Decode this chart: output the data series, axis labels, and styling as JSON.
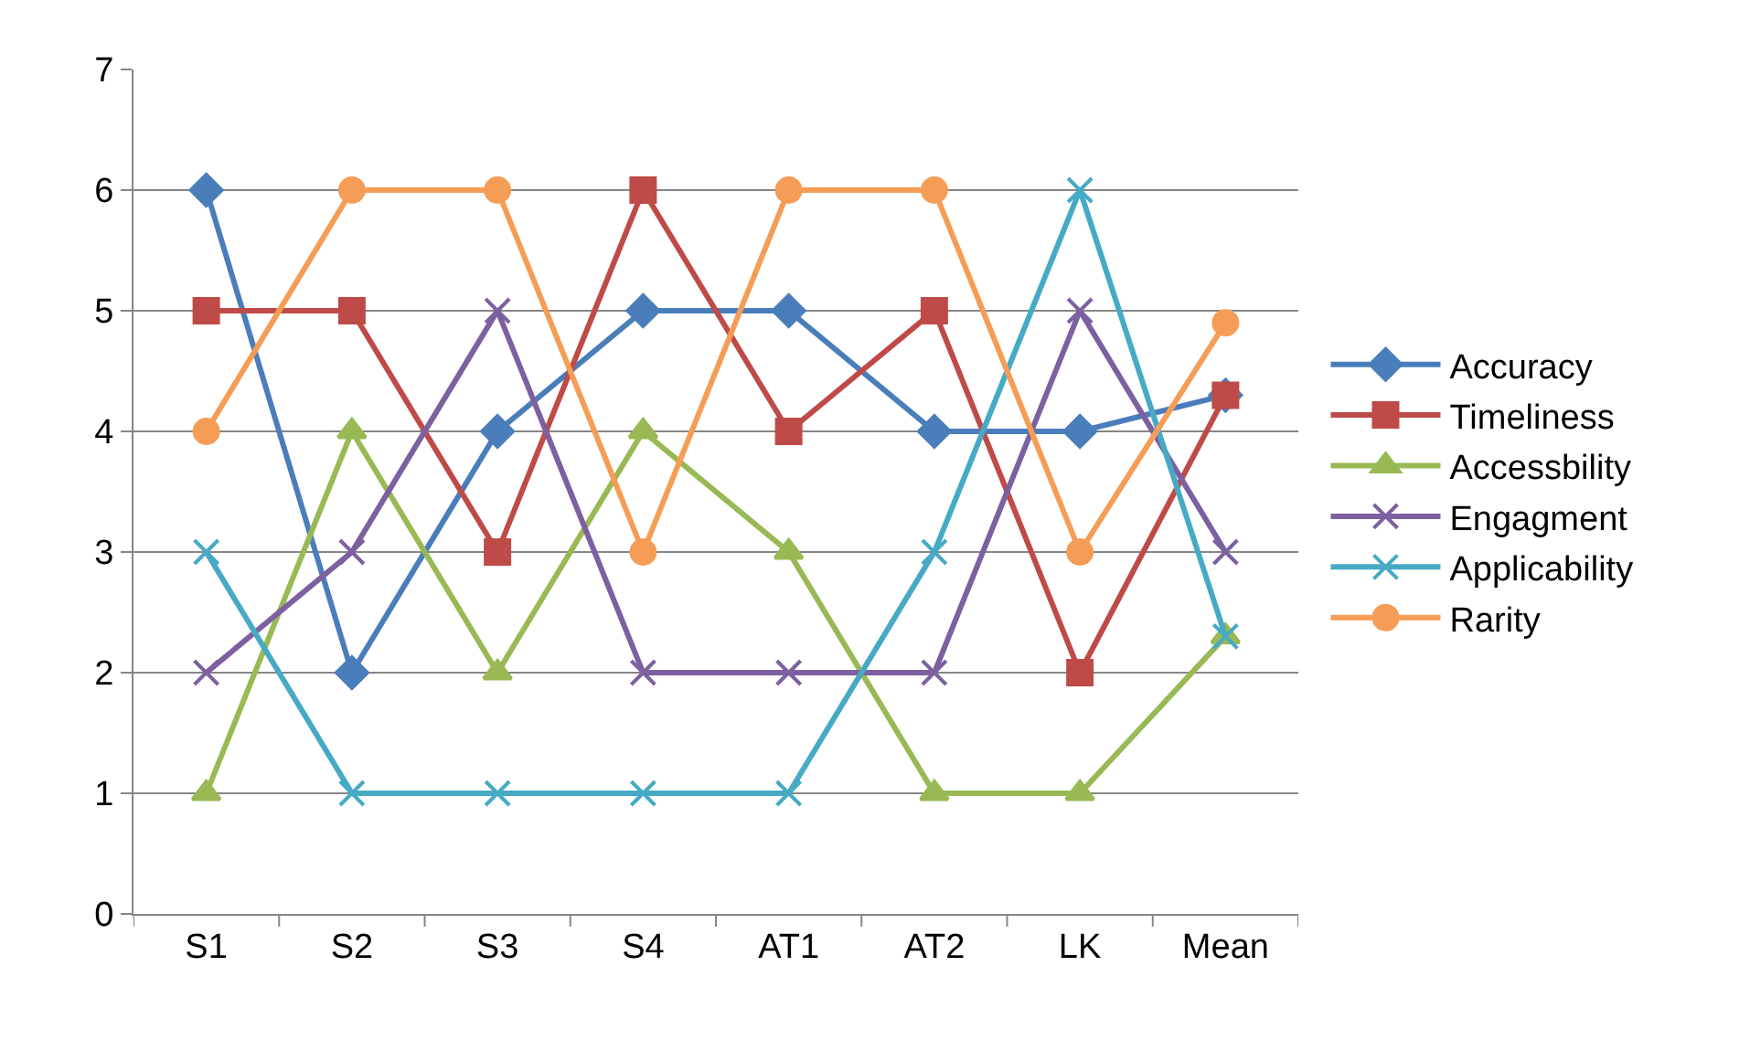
{
  "chart_data": {
    "type": "line",
    "categories": [
      "S1",
      "S2",
      "S3",
      "S4",
      "AT1",
      "AT2",
      "LK",
      "Mean"
    ],
    "series": [
      {
        "name": "Accuracy",
        "color": "#4a7ebb",
        "marker": "diamond",
        "values": [
          6,
          2,
          4,
          5,
          5,
          4,
          4,
          4.3
        ]
      },
      {
        "name": "Timeliness",
        "color": "#be4b48",
        "marker": "square",
        "values": [
          5,
          5,
          3,
          6,
          4,
          5,
          2,
          4.3
        ]
      },
      {
        "name": "Accessbility",
        "color": "#98b954",
        "marker": "triangle",
        "values": [
          1,
          4,
          2,
          4,
          3,
          1,
          1,
          2.3
        ]
      },
      {
        "name": "Engagment",
        "color": "#7d60a0",
        "marker": "cross",
        "values": [
          2,
          3,
          5,
          2,
          2,
          2,
          5,
          3
        ]
      },
      {
        "name": "Applicability",
        "color": "#46aac5",
        "marker": "cross",
        "values": [
          3,
          1,
          1,
          1,
          1,
          3,
          6,
          2.3
        ]
      },
      {
        "name": "Rarity",
        "color": "#f59d56",
        "marker": "circle",
        "values": [
          4,
          6,
          6,
          3,
          6,
          6,
          3,
          4.9
        ]
      }
    ],
    "ylim": [
      0,
      7
    ],
    "yticks": [
      0,
      1,
      2,
      3,
      4,
      5,
      6,
      7
    ],
    "grid": "y",
    "legend": "right",
    "line_style": "solid"
  }
}
